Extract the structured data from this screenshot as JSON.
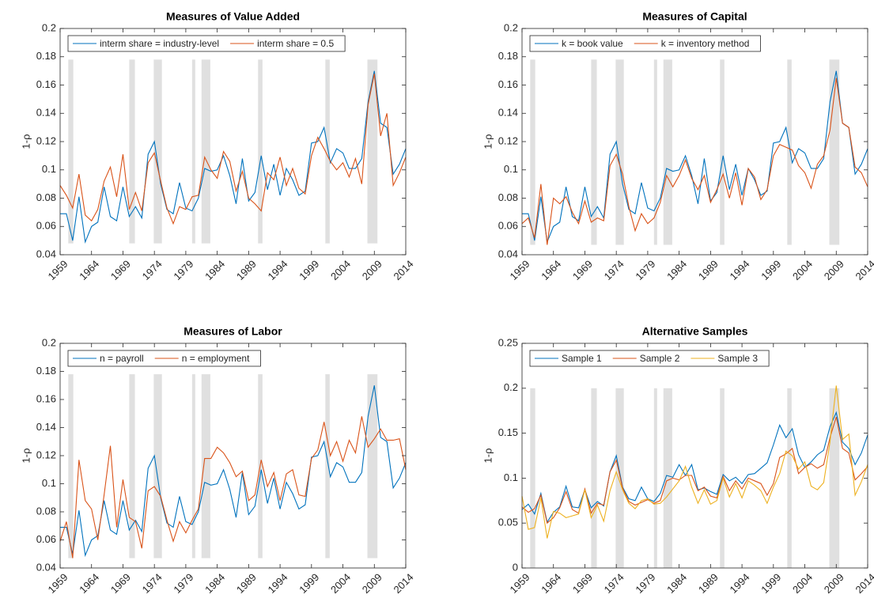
{
  "chart_data": [
    {
      "type": "line",
      "title": "Measures of Value Added",
      "ylabel": "1-ρ",
      "x": [
        1959,
        1960,
        1961,
        1962,
        1963,
        1964,
        1965,
        1966,
        1967,
        1968,
        1969,
        1970,
        1971,
        1972,
        1973,
        1974,
        1975,
        1976,
        1977,
        1978,
        1979,
        1980,
        1981,
        1982,
        1983,
        1984,
        1985,
        1986,
        1987,
        1988,
        1989,
        1990,
        1991,
        1992,
        1993,
        1994,
        1995,
        1996,
        1997,
        1998,
        1999,
        2000,
        2001,
        2002,
        2003,
        2004,
        2005,
        2006,
        2007,
        2008,
        2009,
        2010,
        2011,
        2012,
        2013,
        2014
      ],
      "series": [
        {
          "name": "interm share = industry-level",
          "color": "#0072bd",
          "values": [
            0.069,
            0.069,
            0.05,
            0.081,
            0.049,
            0.06,
            0.063,
            0.088,
            0.067,
            0.064,
            0.088,
            0.067,
            0.074,
            0.066,
            0.111,
            0.12,
            0.09,
            0.072,
            0.069,
            0.091,
            0.073,
            0.071,
            0.08,
            0.101,
            0.099,
            0.1,
            0.11,
            0.096,
            0.076,
            0.108,
            0.078,
            0.084,
            0.11,
            0.086,
            0.104,
            0.082,
            0.101,
            0.093,
            0.082,
            0.085,
            0.119,
            0.12,
            0.13,
            0.105,
            0.115,
            0.112,
            0.101,
            0.101,
            0.108,
            0.148,
            0.17,
            0.133,
            0.13,
            0.097,
            0.104,
            0.115
          ]
        },
        {
          "name": "interm share = 0.5",
          "color": "#d95319",
          "values": [
            0.089,
            0.082,
            0.073,
            0.097,
            0.068,
            0.064,
            0.072,
            0.092,
            0.102,
            0.081,
            0.111,
            0.072,
            0.084,
            0.071,
            0.105,
            0.112,
            0.092,
            0.073,
            0.062,
            0.074,
            0.072,
            0.081,
            0.082,
            0.109,
            0.1,
            0.094,
            0.113,
            0.106,
            0.085,
            0.099,
            0.08,
            0.076,
            0.071,
            0.098,
            0.093,
            0.109,
            0.089,
            0.101,
            0.087,
            0.083,
            0.11,
            0.123,
            0.115,
            0.106,
            0.1,
            0.105,
            0.095,
            0.108,
            0.09,
            0.146,
            0.168,
            0.124,
            0.14,
            0.089,
            0.098,
            0.109
          ]
        }
      ],
      "xlim": [
        1959,
        2014
      ],
      "xticks": [
        1959,
        1964,
        1969,
        1974,
        1979,
        1984,
        1989,
        1994,
        1999,
        2004,
        2009,
        2014
      ],
      "ylim": [
        0.04,
        0.2
      ],
      "yticks": [
        0.04,
        0.06,
        0.08,
        0.1,
        0.12,
        0.14,
        0.16,
        0.18,
        0.2
      ],
      "shading": [
        [
          1960.3,
          1961.1
        ],
        [
          1970,
          1970.9
        ],
        [
          1973.9,
          1975.2
        ],
        [
          1980,
          1980.5
        ],
        [
          1981.5,
          1982.9
        ],
        [
          1990.5,
          1991.2
        ],
        [
          2001.2,
          2001.9
        ],
        [
          2007.9,
          2009.5
        ]
      ],
      "shade_ylim": [
        0.048,
        0.178
      ],
      "shade_color": "#e0e0e0",
      "legend": "northwest",
      "grid": false
    },
    {
      "type": "line",
      "title": "Measures of Capital",
      "ylabel": "1-ρ",
      "x": [
        1959,
        1960,
        1961,
        1962,
        1963,
        1964,
        1965,
        1966,
        1967,
        1968,
        1969,
        1970,
        1971,
        1972,
        1973,
        1974,
        1975,
        1976,
        1977,
        1978,
        1979,
        1980,
        1981,
        1982,
        1983,
        1984,
        1985,
        1986,
        1987,
        1988,
        1989,
        1990,
        1991,
        1992,
        1993,
        1994,
        1995,
        1996,
        1997,
        1998,
        1999,
        2000,
        2001,
        2002,
        2003,
        2004,
        2005,
        2006,
        2007,
        2008,
        2009,
        2010,
        2011,
        2012,
        2013,
        2014
      ],
      "series": [
        {
          "name": "k = book value",
          "color": "#0072bd",
          "values": [
            0.069,
            0.069,
            0.05,
            0.081,
            0.049,
            0.06,
            0.063,
            0.088,
            0.067,
            0.064,
            0.088,
            0.067,
            0.074,
            0.066,
            0.111,
            0.12,
            0.09,
            0.072,
            0.069,
            0.091,
            0.073,
            0.071,
            0.08,
            0.101,
            0.099,
            0.1,
            0.11,
            0.096,
            0.076,
            0.108,
            0.078,
            0.084,
            0.11,
            0.086,
            0.104,
            0.082,
            0.101,
            0.093,
            0.082,
            0.085,
            0.119,
            0.12,
            0.13,
            0.105,
            0.115,
            0.112,
            0.101,
            0.101,
            0.108,
            0.148,
            0.17,
            0.133,
            0.13,
            0.097,
            0.104,
            0.115
          ]
        },
        {
          "name": "k = inventory method",
          "color": "#d95319",
          "values": [
            0.062,
            0.066,
            0.052,
            0.09,
            0.047,
            0.08,
            0.076,
            0.081,
            0.07,
            0.062,
            0.078,
            0.063,
            0.066,
            0.064,
            0.103,
            0.111,
            0.097,
            0.074,
            0.057,
            0.069,
            0.062,
            0.066,
            0.077,
            0.096,
            0.088,
            0.096,
            0.107,
            0.094,
            0.086,
            0.096,
            0.077,
            0.086,
            0.097,
            0.08,
            0.098,
            0.075,
            0.101,
            0.095,
            0.079,
            0.086,
            0.11,
            0.118,
            0.116,
            0.114,
            0.103,
            0.098,
            0.087,
            0.104,
            0.11,
            0.128,
            0.165,
            0.133,
            0.13,
            0.102,
            0.098,
            0.088
          ]
        }
      ],
      "xlim": [
        1959,
        2014
      ],
      "xticks": [
        1959,
        1964,
        1969,
        1974,
        1979,
        1984,
        1989,
        1994,
        1999,
        2004,
        2009,
        2014
      ],
      "ylim": [
        0.04,
        0.2
      ],
      "yticks": [
        0.04,
        0.06,
        0.08,
        0.1,
        0.12,
        0.14,
        0.16,
        0.18,
        0.2
      ],
      "shading": [
        [
          1960.3,
          1961.1
        ],
        [
          1970,
          1970.9
        ],
        [
          1973.9,
          1975.2
        ],
        [
          1980,
          1980.5
        ],
        [
          1981.5,
          1982.9
        ],
        [
          1990.5,
          1991.2
        ],
        [
          2001.2,
          2001.9
        ],
        [
          2007.9,
          2009.5
        ]
      ],
      "shade_ylim": [
        0.047,
        0.178
      ],
      "shade_color": "#e0e0e0",
      "legend": "northwest",
      "grid": false
    },
    {
      "type": "line",
      "title": "Measures of Labor",
      "ylabel": "1-ρ",
      "x": [
        1959,
        1960,
        1961,
        1962,
        1963,
        1964,
        1965,
        1966,
        1967,
        1968,
        1969,
        1970,
        1971,
        1972,
        1973,
        1974,
        1975,
        1976,
        1977,
        1978,
        1979,
        1980,
        1981,
        1982,
        1983,
        1984,
        1985,
        1986,
        1987,
        1988,
        1989,
        1990,
        1991,
        1992,
        1993,
        1994,
        1995,
        1996,
        1997,
        1998,
        1999,
        2000,
        2001,
        2002,
        2003,
        2004,
        2005,
        2006,
        2007,
        2008,
        2009,
        2010,
        2011,
        2012,
        2013,
        2014
      ],
      "series": [
        {
          "name": "n = payroll",
          "color": "#0072bd",
          "values": [
            0.069,
            0.069,
            0.05,
            0.081,
            0.049,
            0.06,
            0.063,
            0.088,
            0.067,
            0.064,
            0.088,
            0.067,
            0.074,
            0.066,
            0.111,
            0.12,
            0.09,
            0.072,
            0.069,
            0.091,
            0.073,
            0.071,
            0.08,
            0.101,
            0.099,
            0.1,
            0.11,
            0.096,
            0.076,
            0.108,
            0.078,
            0.084,
            0.11,
            0.086,
            0.104,
            0.082,
            0.101,
            0.093,
            0.082,
            0.085,
            0.119,
            0.12,
            0.13,
            0.105,
            0.115,
            0.112,
            0.101,
            0.101,
            0.108,
            0.148,
            0.17,
            0.133,
            0.13,
            0.097,
            0.104,
            0.115
          ]
        },
        {
          "name": "n = employment",
          "color": "#d95319",
          "values": [
            0.059,
            0.073,
            0.047,
            0.117,
            0.088,
            0.082,
            0.06,
            0.092,
            0.127,
            0.069,
            0.103,
            0.076,
            0.073,
            0.054,
            0.095,
            0.098,
            0.091,
            0.074,
            0.059,
            0.073,
            0.065,
            0.074,
            0.082,
            0.118,
            0.118,
            0.126,
            0.122,
            0.115,
            0.105,
            0.109,
            0.088,
            0.092,
            0.117,
            0.098,
            0.108,
            0.088,
            0.107,
            0.11,
            0.092,
            0.091,
            0.118,
            0.124,
            0.144,
            0.12,
            0.13,
            0.116,
            0.131,
            0.122,
            0.148,
            0.126,
            0.132,
            0.139,
            0.131,
            0.131,
            0.132,
            0.11
          ]
        }
      ],
      "xlim": [
        1959,
        2014
      ],
      "xticks": [
        1959,
        1964,
        1969,
        1974,
        1979,
        1984,
        1989,
        1994,
        1999,
        2004,
        2009,
        2014
      ],
      "ylim": [
        0.04,
        0.2
      ],
      "yticks": [
        0.04,
        0.06,
        0.08,
        0.1,
        0.12,
        0.14,
        0.16,
        0.18,
        0.2
      ],
      "shading": [
        [
          1960.3,
          1961.1
        ],
        [
          1970,
          1970.9
        ],
        [
          1973.9,
          1975.2
        ],
        [
          1980,
          1980.5
        ],
        [
          1981.5,
          1982.9
        ],
        [
          1990.5,
          1991.2
        ],
        [
          2001.2,
          2001.9
        ],
        [
          2007.9,
          2009.5
        ]
      ],
      "shade_ylim": [
        0.047,
        0.178
      ],
      "shade_color": "#e0e0e0",
      "legend": "northwest",
      "grid": false
    },
    {
      "type": "line",
      "title": "Alternative Samples",
      "ylabel": "1-ρ",
      "x": [
        1959,
        1960,
        1961,
        1962,
        1963,
        1964,
        1965,
        1966,
        1967,
        1968,
        1969,
        1970,
        1971,
        1972,
        1973,
        1974,
        1975,
        1976,
        1977,
        1978,
        1979,
        1980,
        1981,
        1982,
        1983,
        1984,
        1985,
        1986,
        1987,
        1988,
        1989,
        1990,
        1991,
        1992,
        1993,
        1994,
        1995,
        1996,
        1997,
        1998,
        1999,
        2000,
        2001,
        2002,
        2003,
        2004,
        2005,
        2006,
        2007,
        2008,
        2009,
        2010,
        2011,
        2012,
        2013,
        2014
      ],
      "series": [
        {
          "name": "Sample 1",
          "color": "#0072bd",
          "values": [
            0.065,
            0.071,
            0.06,
            0.083,
            0.051,
            0.062,
            0.068,
            0.091,
            0.068,
            0.067,
            0.087,
            0.067,
            0.074,
            0.069,
            0.107,
            0.125,
            0.09,
            0.077,
            0.075,
            0.09,
            0.077,
            0.074,
            0.083,
            0.103,
            0.101,
            0.115,
            0.103,
            0.115,
            0.087,
            0.089,
            0.085,
            0.082,
            0.104,
            0.097,
            0.101,
            0.094,
            0.104,
            0.105,
            0.111,
            0.117,
            0.137,
            0.159,
            0.145,
            0.155,
            0.126,
            0.112,
            0.118,
            0.126,
            0.131,
            0.157,
            0.173,
            0.14,
            0.133,
            0.115,
            0.128,
            0.148
          ]
        },
        {
          "name": "Sample 2",
          "color": "#d95319",
          "values": [
            0.068,
            0.062,
            0.066,
            0.081,
            0.05,
            0.056,
            0.067,
            0.085,
            0.065,
            0.061,
            0.088,
            0.061,
            0.072,
            0.07,
            0.107,
            0.12,
            0.089,
            0.074,
            0.07,
            0.073,
            0.076,
            0.072,
            0.075,
            0.097,
            0.1,
            0.098,
            0.103,
            0.103,
            0.086,
            0.09,
            0.08,
            0.078,
            0.102,
            0.086,
            0.097,
            0.088,
            0.1,
            0.097,
            0.094,
            0.081,
            0.094,
            0.123,
            0.127,
            0.133,
            0.105,
            0.112,
            0.116,
            0.111,
            0.115,
            0.145,
            0.168,
            0.133,
            0.128,
            0.098,
            0.105,
            0.113
          ]
        },
        {
          "name": "Sample 3",
          "color": "#edb120",
          "values": [
            0.08,
            0.043,
            0.045,
            0.078,
            0.033,
            0.063,
            0.061,
            0.056,
            0.058,
            0.06,
            0.087,
            0.056,
            0.07,
            0.052,
            0.086,
            0.107,
            0.087,
            0.072,
            0.066,
            0.075,
            0.077,
            0.071,
            0.072,
            0.079,
            0.088,
            0.097,
            0.113,
            0.09,
            0.072,
            0.087,
            0.071,
            0.075,
            0.1,
            0.079,
            0.094,
            0.078,
            0.097,
            0.092,
            0.086,
            0.072,
            0.09,
            0.105,
            0.13,
            0.125,
            0.11,
            0.118,
            0.091,
            0.087,
            0.095,
            0.14,
            0.203,
            0.143,
            0.149,
            0.081,
            0.096,
            0.115
          ]
        }
      ],
      "xlim": [
        1959,
        2014
      ],
      "xticks": [
        1959,
        1964,
        1969,
        1974,
        1979,
        1984,
        1989,
        1994,
        1999,
        2004,
        2009,
        2014
      ],
      "ylim": [
        0,
        0.25
      ],
      "yticks": [
        0,
        0.05,
        0.1,
        0.15,
        0.2,
        0.25
      ],
      "shading": [
        [
          1960.3,
          1961.1
        ],
        [
          1970,
          1970.9
        ],
        [
          1973.9,
          1975.2
        ],
        [
          1980,
          1980.5
        ],
        [
          1981.5,
          1982.9
        ],
        [
          1990.5,
          1991.2
        ],
        [
          2001.2,
          2001.9
        ],
        [
          2007.9,
          2009.5
        ]
      ],
      "shade_ylim": [
        0,
        0.2
      ],
      "shade_color": "#e0e0e0",
      "legend": "northwest",
      "grid": false
    }
  ]
}
